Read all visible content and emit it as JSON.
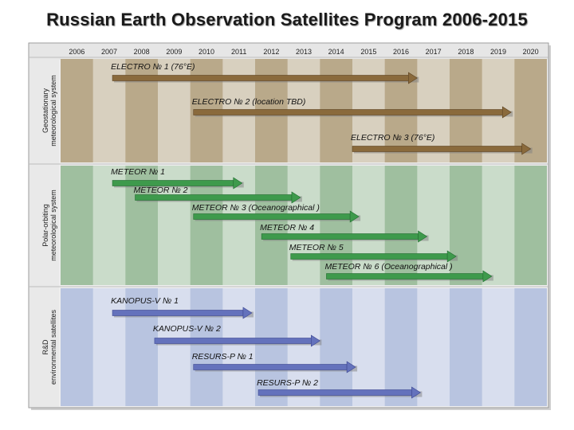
{
  "title": "Russian Earth Observation Satellites Program 2006-2015",
  "chart_data": {
    "type": "gantt",
    "years": [
      "2006",
      "2007",
      "2008",
      "2009",
      "2010",
      "2011",
      "2012",
      "2013",
      "2014",
      "2015",
      "2016",
      "2017",
      "2018",
      "2019",
      "2020"
    ],
    "groups": [
      {
        "label": "Geostationary meteorological system",
        "color": "#b9a98a",
        "items": [
          {
            "name": "ELECTRO № 1 (76°E)",
            "start": 2007.6,
            "end": 2017.0
          },
          {
            "name": "ELECTRO № 2 (location TBD)",
            "start": 2010.1,
            "end": 2019.9
          },
          {
            "name": "ELECTRO № 3 (76°E)",
            "start": 2015.0,
            "end": 2020.5
          }
        ]
      },
      {
        "label": "Polar-orbiting meteorological system",
        "color": "#9fbf9f",
        "items": [
          {
            "name": "METEOR № 1",
            "start": 2007.6,
            "end": 2011.6
          },
          {
            "name": "METEOR № 2",
            "start": 2008.3,
            "end": 2013.4
          },
          {
            "name": "METEOR № 3 (Oceanographical )",
            "start": 2010.1,
            "end": 2015.2
          },
          {
            "name": "METEOR № 4",
            "start": 2012.2,
            "end": 2017.3
          },
          {
            "name": "METEOR № 5",
            "start": 2013.1,
            "end": 2018.2
          },
          {
            "name": "METEOR № 6 (Oceanographical )",
            "start": 2014.2,
            "end": 2019.3
          }
        ]
      },
      {
        "label": "R&D environmental satellites",
        "color": "#b8c4e0",
        "items": [
          {
            "name": "KANOPUS-V № 1",
            "start": 2007.6,
            "end": 2011.9
          },
          {
            "name": "KANOPUS-V № 2",
            "start": 2008.9,
            "end": 2014.0
          },
          {
            "name": "RESURS-P № 1",
            "start": 2010.1,
            "end": 2015.1
          },
          {
            "name": "RESURS-P № 2",
            "start": 2012.1,
            "end": 2017.1
          }
        ]
      }
    ]
  }
}
